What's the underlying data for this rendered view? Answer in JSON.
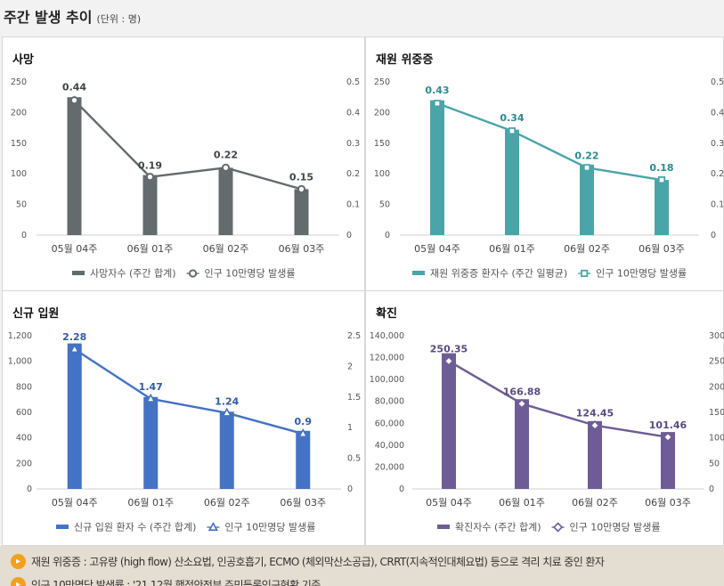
{
  "header": {
    "title": "주간 발생 추이",
    "unit": "(단위 : 명)"
  },
  "chart_data": [
    {
      "id": "deaths",
      "type": "bar+line",
      "title": "사망",
      "categories": [
        "05월 04주",
        "06월 01주",
        "06월 02주",
        "06월 03주"
      ],
      "bar": {
        "name": "사망자수 (주간 합계)",
        "values": [
          225,
          98,
          110,
          75
        ],
        "color": "#636b6f"
      },
      "line": {
        "name": "인구 10만명당 발생률",
        "values": [
          0.44,
          0.19,
          0.22,
          0.15
        ],
        "labels": [
          "0.44",
          "0.19",
          "0.22",
          "0.15"
        ],
        "color": "#636b6f",
        "labelColor": "#3f4548",
        "marker": "circle"
      },
      "yleft": {
        "range": [
          0,
          250
        ],
        "ticks": [
          "0",
          "50",
          "100",
          "150",
          "200",
          "250"
        ]
      },
      "yright": {
        "range": [
          0,
          0.5
        ],
        "ticks": [
          "0",
          "0.1",
          "0.2",
          "0.3",
          "0.4",
          "0.5"
        ]
      }
    },
    {
      "id": "severe",
      "type": "bar+line",
      "title": "재원 위중증",
      "categories": [
        "05월 04주",
        "06월 01주",
        "06월 02주",
        "06월 03주"
      ],
      "bar": {
        "name": "재원 위중증 환자수 (주간 일평균)",
        "values": [
          220,
          172,
          115,
          90
        ],
        "color": "#4aa5a8"
      },
      "line": {
        "name": "인구 10만명당 발생률",
        "values": [
          0.43,
          0.34,
          0.22,
          0.18
        ],
        "labels": [
          "0.43",
          "0.34",
          "0.22",
          "0.18"
        ],
        "color": "#4aa5a8",
        "labelColor": "#2b8a8e",
        "marker": "square"
      },
      "yleft": {
        "range": [
          0,
          250
        ],
        "ticks": [
          "0",
          "50",
          "100",
          "150",
          "200",
          "250"
        ]
      },
      "yright": {
        "range": [
          0,
          0.5
        ],
        "ticks": [
          "0",
          "0.1",
          "0.2",
          "0.3",
          "0.4",
          "0.5"
        ]
      }
    },
    {
      "id": "admissions",
      "type": "bar+line",
      "title": "신규 입원",
      "categories": [
        "05월 04주",
        "06월 01주",
        "06월 02주",
        "06월 03주"
      ],
      "bar": {
        "name": "신규 입원 환자 수 (주간 합계)",
        "values": [
          1140,
          720,
          605,
          455
        ],
        "color": "#4472c4"
      },
      "line": {
        "name": "인구 10만명당 발생률",
        "values": [
          2.28,
          1.47,
          1.24,
          0.9
        ],
        "labels": [
          "2.28",
          "1.47",
          "1.24",
          "0.9"
        ],
        "color": "#4472c4",
        "labelColor": "#2f5aa8",
        "marker": "triangle"
      },
      "yleft": {
        "range": [
          0,
          1200
        ],
        "ticks": [
          "0",
          "200",
          "400",
          "600",
          "800",
          "1,000",
          "1,200"
        ]
      },
      "yright": {
        "range": [
          0,
          2.5
        ],
        "ticks": [
          "0",
          "0.5",
          "1",
          "1.5",
          "2",
          "2.5"
        ]
      }
    },
    {
      "id": "confirmed",
      "type": "bar+line",
      "title": "확진",
      "categories": [
        "05월 04주",
        "06월 01주",
        "06월 02주",
        "06월 03주"
      ],
      "bar": {
        "name": "확진자수 (주간 합계)",
        "values": [
          124000,
          82000,
          62000,
          52000
        ],
        "color": "#6e5c96"
      },
      "line": {
        "name": "인구 10만명당 발생률",
        "values": [
          250.35,
          166.88,
          124.45,
          101.46
        ],
        "labels": [
          "250.35",
          "166.88",
          "124.45",
          "101.46"
        ],
        "color": "#6e5c96",
        "labelColor": "#5a4a80",
        "marker": "diamond"
      },
      "yleft": {
        "range": [
          0,
          140000
        ],
        "ticks": [
          "0",
          "20,000",
          "40,000",
          "60,000",
          "80,000",
          "100,000",
          "120,000",
          "140,000"
        ]
      },
      "yright": {
        "range": [
          0,
          300
        ],
        "ticks": [
          "0",
          "50",
          "100",
          "150",
          "200",
          "250",
          "300"
        ]
      }
    }
  ],
  "footnotes": [
    {
      "icon": "speaker-icon",
      "text": "재원 위중증 : 고유량 (high flow) 산소요법, 인공호흡기, ECMO (체외막산소공급), CRRT(지속적인대체요법) 등으로 격리 치료 중인 환자"
    },
    {
      "icon": "speaker-icon",
      "text": "인구 10만명당 발생률 : '21.12월 행정안전부 주민등록인구현황 기준"
    }
  ]
}
